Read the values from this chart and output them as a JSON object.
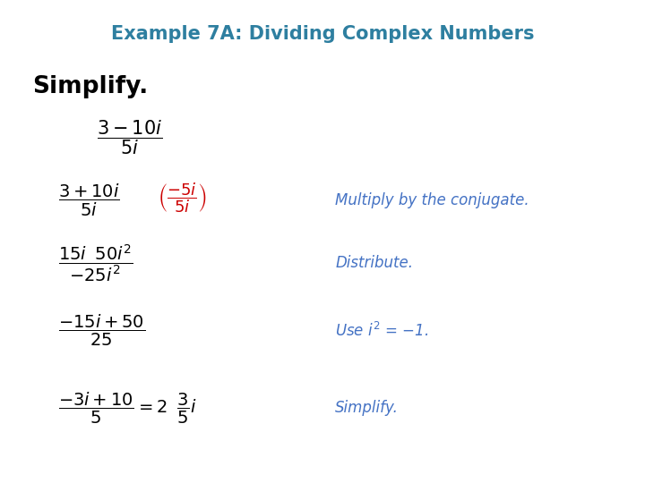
{
  "title": "Example 7A: Dividing Complex Numbers",
  "title_color": "#2E7FA0",
  "title_fontsize": 15,
  "simplify_label": "Simplify.",
  "simplify_color": "#000000",
  "simplify_fontsize": 19,
  "bg_color": "#ffffff",
  "math_color": "#000000",
  "red_color": "#cc0000",
  "blue_italic_color": "#4472C4"
}
